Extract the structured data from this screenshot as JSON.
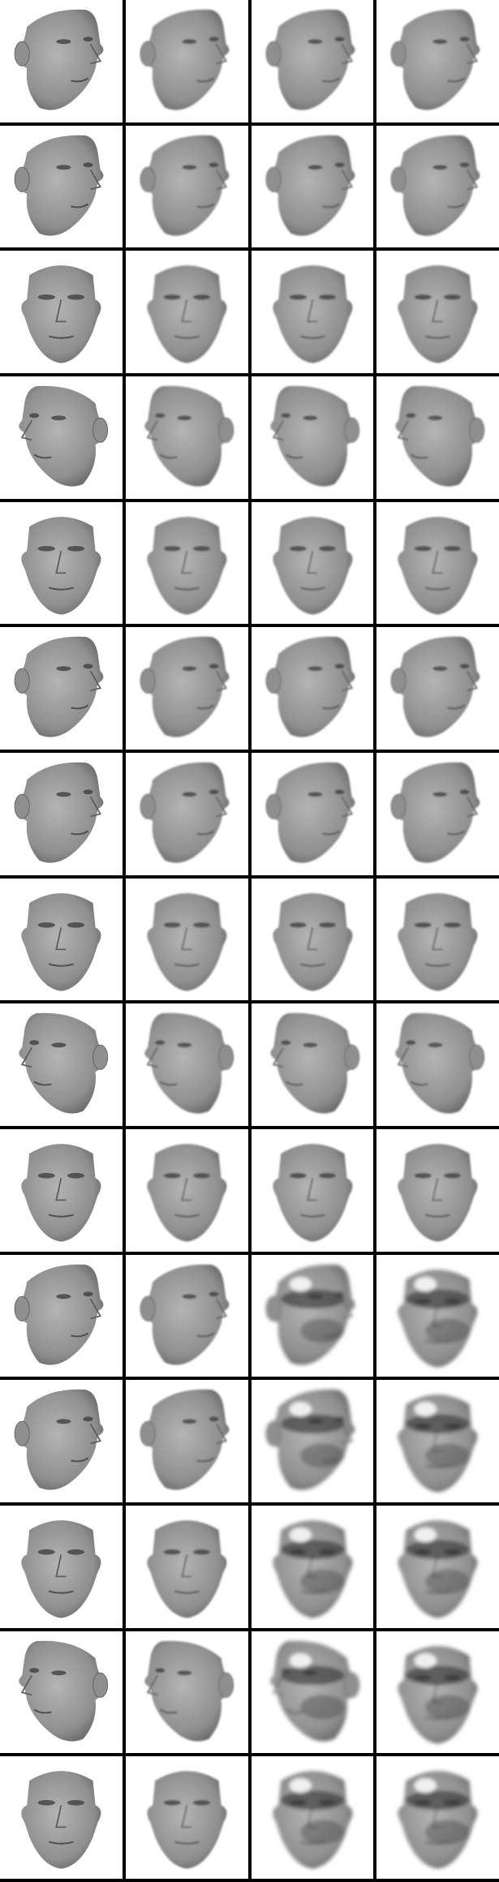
{
  "grid": {
    "columns": 4,
    "rows": 15,
    "background": "#ffffff",
    "divider_color": "#000000",
    "cells": [
      [
        "face-right",
        "face-right",
        "face-right",
        "face-right"
      ],
      [
        "face-right",
        "face-right",
        "face-right",
        "face-right"
      ],
      [
        "face-front",
        "face-front",
        "face-front",
        "face-front"
      ],
      [
        "face-left",
        "face-left",
        "face-left",
        "face-left"
      ],
      [
        "face-front",
        "face-front",
        "face-front",
        "face-front"
      ],
      [
        "face-right",
        "face-right",
        "face-right",
        "face-right"
      ],
      [
        "face-right",
        "face-right",
        "face-right",
        "face-right"
      ],
      [
        "face-front",
        "face-front",
        "face-front",
        "face-front"
      ],
      [
        "face-left",
        "face-left",
        "face-left",
        "face-left"
      ],
      [
        "face-front",
        "face-front",
        "face-front",
        "face-front"
      ],
      [
        "face-right",
        "face-right",
        "face-right-distorted",
        "face-front-distorted"
      ],
      [
        "face-right",
        "face-right",
        "face-right-distorted",
        "face-front-distorted"
      ],
      [
        "face-front",
        "face-front",
        "face-front-distorted",
        "face-front-distorted"
      ],
      [
        "face-left",
        "face-left",
        "face-left-distorted",
        "face-front-distorted"
      ],
      [
        "face-front",
        "face-front",
        "face-front-distorted",
        "face-front-distorted"
      ]
    ],
    "column_styles": [
      "sharp",
      "smooth",
      "smooth",
      "smooth"
    ],
    "colors": {
      "skin_light": "#b4b4b4",
      "skin_mid": "#8f8f8f",
      "skin_dark": "#5e5e5e",
      "feature": "#3a3a3a"
    }
  }
}
